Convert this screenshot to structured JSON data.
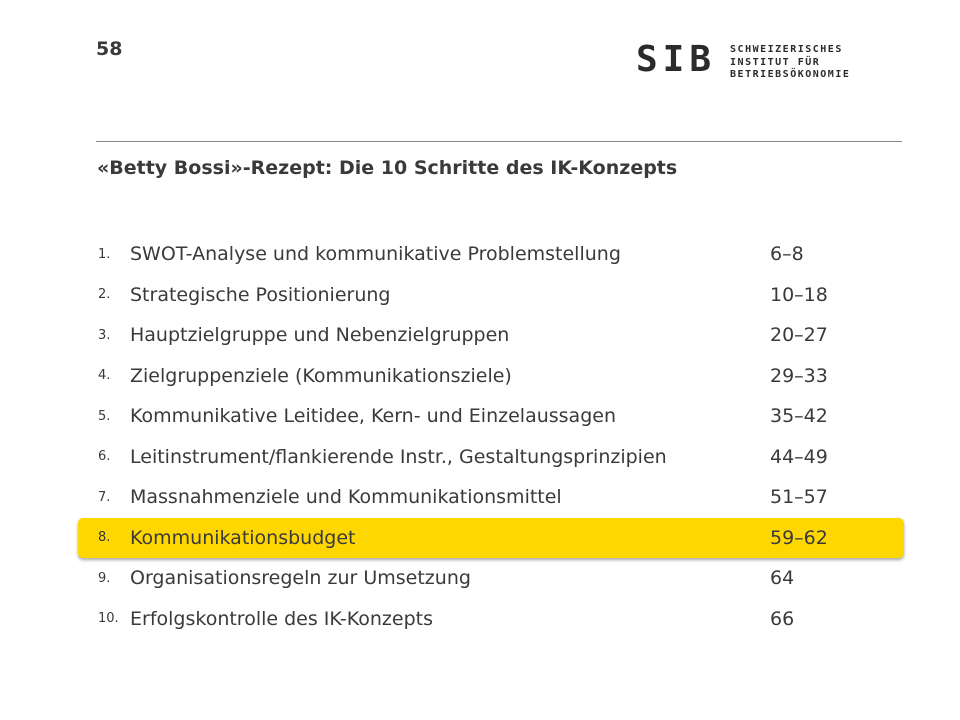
{
  "header": {
    "page_number": "58",
    "logo_mark": "SIB",
    "logo_lines": [
      "SCHWEIZERISCHES",
      "INSTITUT FÜR",
      "BETRIEBSÖKONOMIE"
    ]
  },
  "title": "«Betty Bossi»-Rezept: Die 10 Schritte des IK-Konzepts",
  "items": [
    {
      "num": "1.",
      "label": "SWOT-Analyse und kommunikative Problemstellung",
      "pages": "6–8",
      "highlighted": false
    },
    {
      "num": "2.",
      "label": "Strategische Positionierung",
      "pages": "10–18",
      "highlighted": false
    },
    {
      "num": "3.",
      "label": "Hauptzielgruppe und Nebenzielgruppen",
      "pages": "20–27",
      "highlighted": false
    },
    {
      "num": "4.",
      "label": "Zielgruppenziele (Kommunikationsziele)",
      "pages": "29–33",
      "highlighted": false
    },
    {
      "num": "5.",
      "label": "Kommunikative Leitidee, Kern- und Einzelaussagen",
      "pages": "35–42",
      "highlighted": false
    },
    {
      "num": "6.",
      "label": "Leitinstrument/flankierende Instr., Gestaltungsprinzipien",
      "pages": "44–49",
      "highlighted": false
    },
    {
      "num": "7.",
      "label": "Massnahmenziele und Kommunikationsmittel",
      "pages": "51–57",
      "highlighted": false
    },
    {
      "num": "8.",
      "label": "Kommunikationsbudget",
      "pages": "59–62",
      "highlighted": true
    },
    {
      "num": "9.",
      "label": "Organisationsregeln zur Umsetzung",
      "pages": "64",
      "highlighted": false
    },
    {
      "num": "10.",
      "label": "Erfolgskontrolle des IK-Konzepts",
      "pages": "66",
      "highlighted": false
    }
  ],
  "colors": {
    "highlight": "#ffd700",
    "text": "#3a3a3a",
    "rule": "#8a8a8a"
  }
}
